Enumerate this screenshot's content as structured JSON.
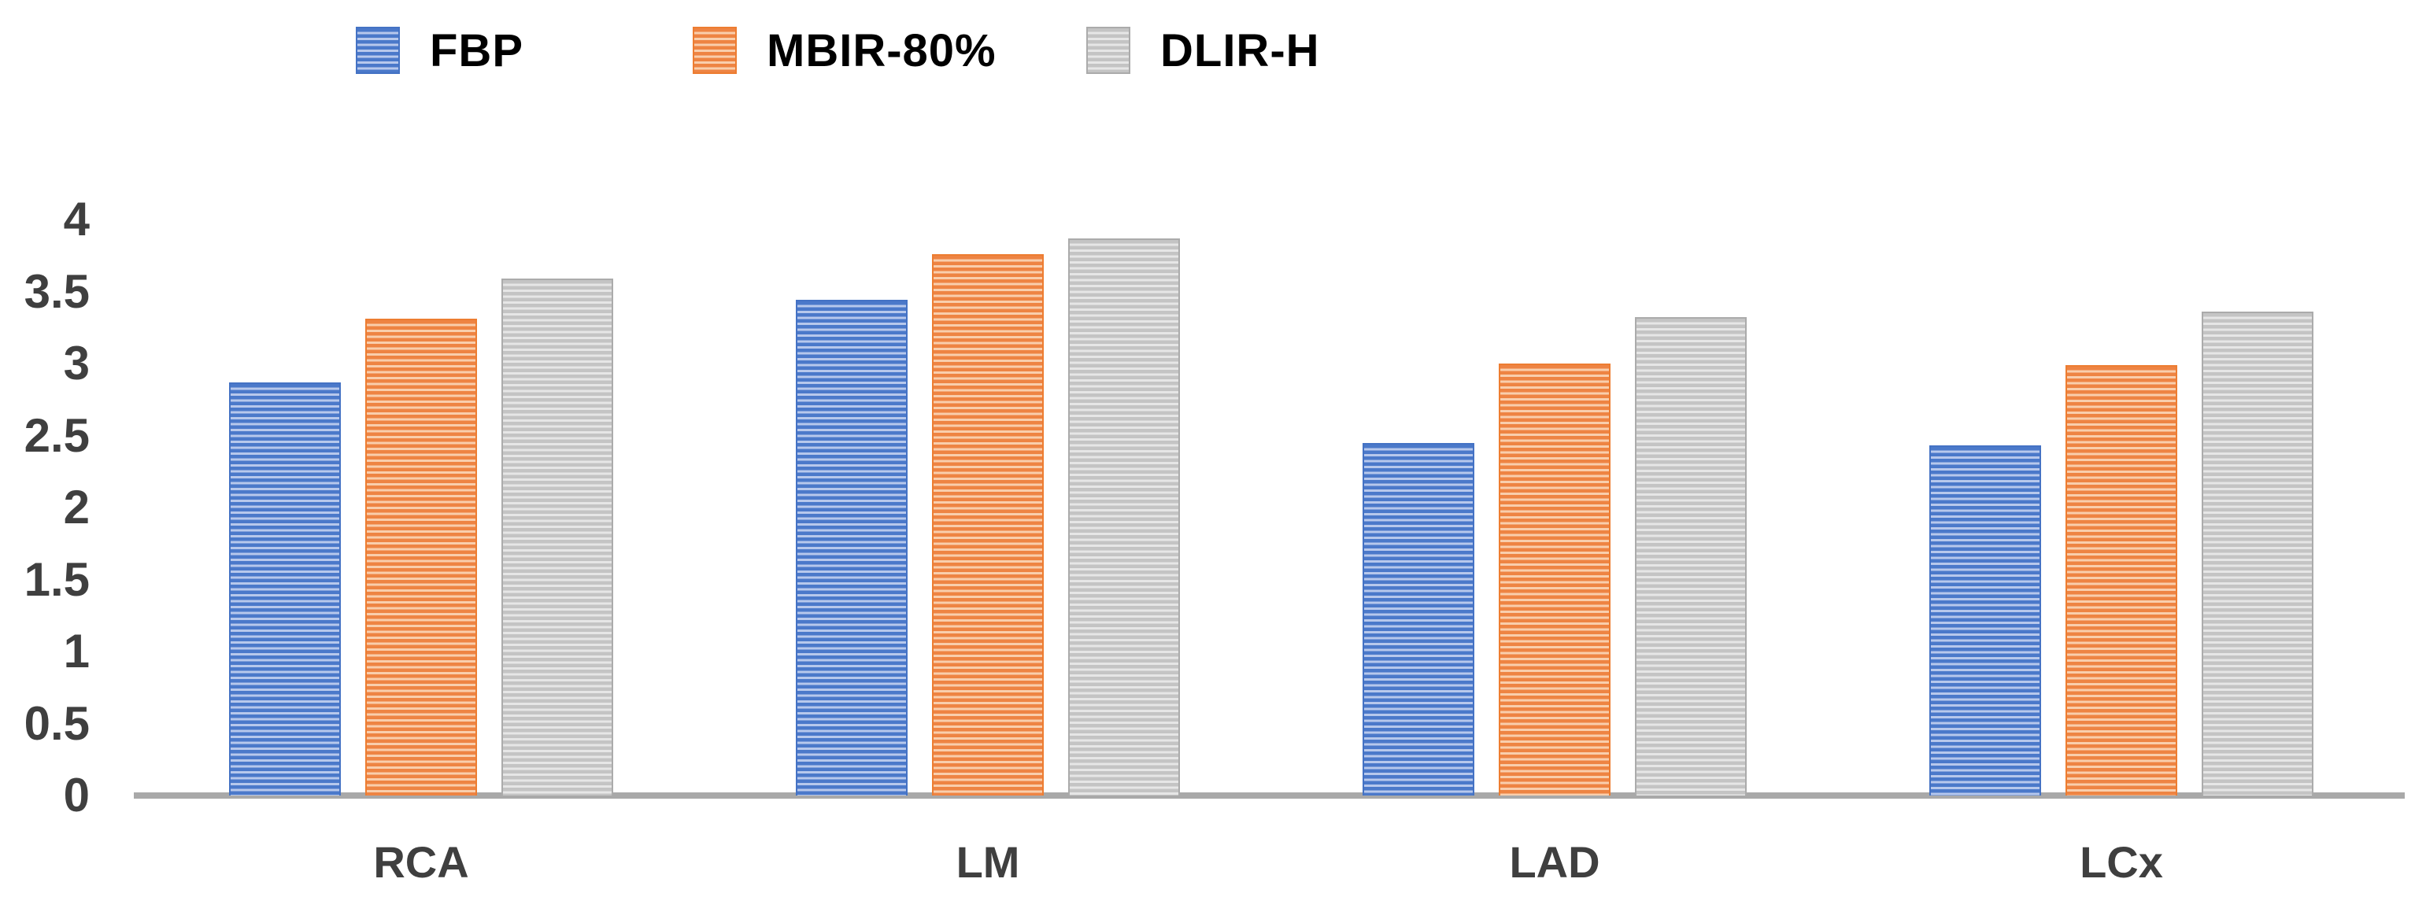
{
  "legend": {
    "items": [
      {
        "label": "FBP"
      },
      {
        "label": "MBIR-80%"
      },
      {
        "label": "DLIR-H"
      }
    ]
  },
  "y_axis": {
    "tick_labels": [
      "4",
      "3.5",
      "3",
      "2.5",
      "2",
      "1.5",
      "1",
      "0.5",
      "0"
    ]
  },
  "x_axis": {
    "labels": [
      "RCA",
      "LM",
      "LAD",
      "LCx"
    ]
  },
  "chart_data": {
    "type": "bar",
    "title": "",
    "xlabel": "",
    "ylabel": "",
    "categories": [
      "RCA",
      "LM",
      "LAD",
      "LCx"
    ],
    "series": [
      {
        "name": "FBP",
        "values": [
          2.87,
          3.44,
          2.45,
          2.43
        ],
        "color": "#4472C4",
        "stripe_dark": "#4B79CA",
        "stripe_light": "#B7C8EC"
      },
      {
        "name": "MBIR-80%",
        "values": [
          3.31,
          3.76,
          3.0,
          2.99
        ],
        "color": "#ED7D31",
        "stripe_dark": "#EE8443",
        "stripe_light": "#F9CEAC"
      },
      {
        "name": "DLIR-H",
        "values": [
          3.59,
          3.87,
          3.32,
          3.36
        ],
        "color": "#ABABAB",
        "stripe_dark": "#C4C4C4",
        "stripe_light": "#E6E6E6"
      }
    ],
    "ylim": [
      0,
      4
    ],
    "ytick_step": 0.5,
    "grid": false,
    "legend_position": "top",
    "bar_fill_pattern": "horizontal-stripes",
    "axis_line_color": "#A9A9A9",
    "tick_label_color": "#3F3F3F",
    "legend_text_color": "#000000"
  }
}
